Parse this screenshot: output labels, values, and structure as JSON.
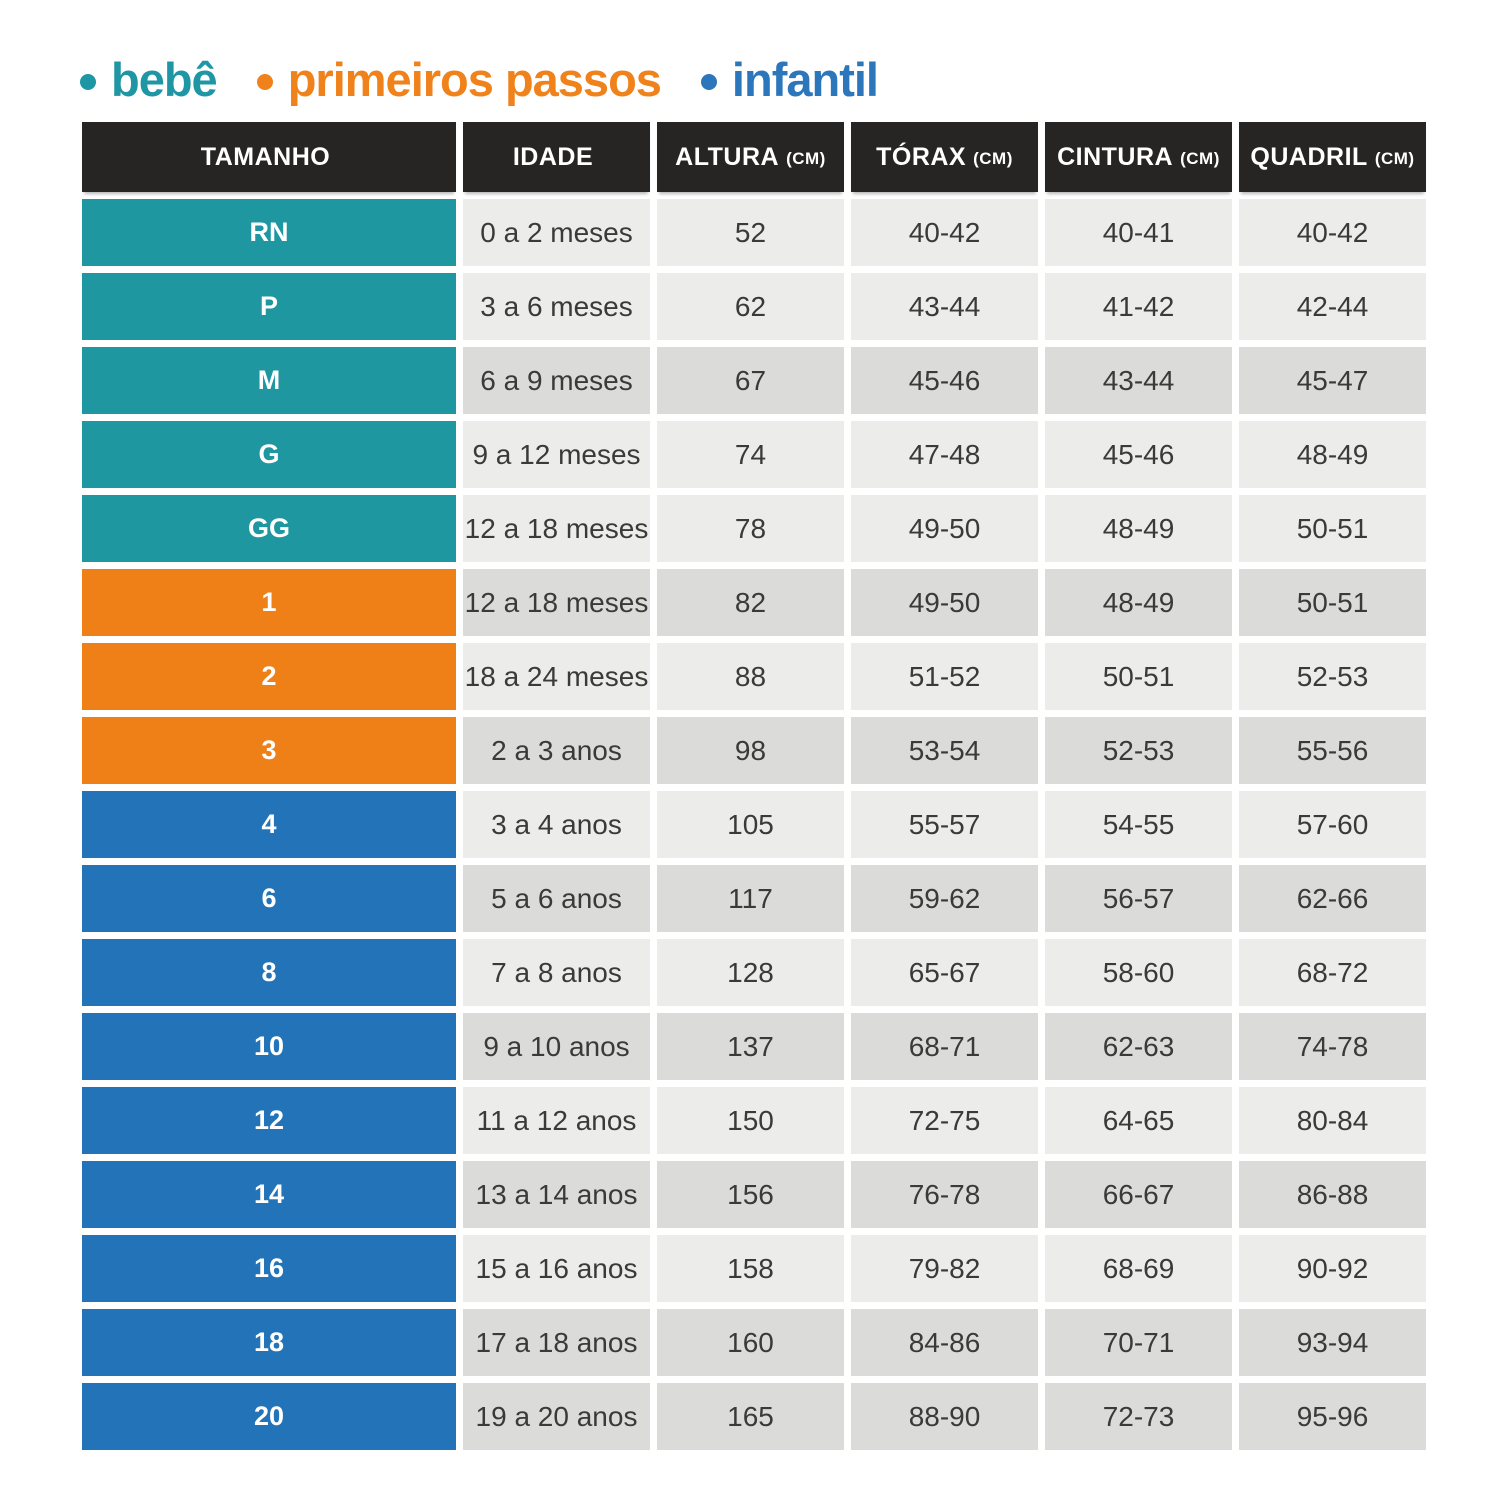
{
  "legend": {
    "items": [
      {
        "label": "bebê",
        "color": "#1E96A4"
      },
      {
        "label": "primeiros passos",
        "color": "#F0821B"
      },
      {
        "label": "infantil",
        "color": "#2C76BC"
      }
    ]
  },
  "table": {
    "headers": [
      {
        "label": "TAMANHO",
        "unit": ""
      },
      {
        "label": "IDADE",
        "unit": ""
      },
      {
        "label": "ALTURA",
        "unit": "(CM)"
      },
      {
        "label": "TÓRAX",
        "unit": "(CM)"
      },
      {
        "label": "CINTURA",
        "unit": "(CM)"
      },
      {
        "label": "QUADRIL",
        "unit": "(CM)"
      }
    ]
  },
  "chart_data": {
    "type": "table",
    "columns": [
      "TAMANHO",
      "IDADE",
      "ALTURA (CM)",
      "TÓRAX (CM)",
      "CINTURA (CM)",
      "QUADRIL (CM)"
    ],
    "groups": {
      "bebe": "bebê",
      "primeiros_passos": "primeiros passos",
      "infantil": "infantil"
    },
    "rows": [
      {
        "size": "RN",
        "group": "bebe",
        "age": "0 a 2 meses",
        "altura_cm": "52",
        "torax_cm": "40-42",
        "cintura_cm": "40-41",
        "quadril_cm": "40-42",
        "shaded": false
      },
      {
        "size": "P",
        "group": "bebe",
        "age": "3 a 6 meses",
        "altura_cm": "62",
        "torax_cm": "43-44",
        "cintura_cm": "41-42",
        "quadril_cm": "42-44",
        "shaded": false
      },
      {
        "size": "M",
        "group": "bebe",
        "age": "6 a 9 meses",
        "altura_cm": "67",
        "torax_cm": "45-46",
        "cintura_cm": "43-44",
        "quadril_cm": "45-47",
        "shaded": true
      },
      {
        "size": "G",
        "group": "bebe",
        "age": "9 a 12 meses",
        "altura_cm": "74",
        "torax_cm": "47-48",
        "cintura_cm": "45-46",
        "quadril_cm": "48-49",
        "shaded": false
      },
      {
        "size": "GG",
        "group": "bebe",
        "age": "12 a 18 meses",
        "altura_cm": "78",
        "torax_cm": "49-50",
        "cintura_cm": "48-49",
        "quadril_cm": "50-51",
        "shaded": false
      },
      {
        "size": "1",
        "group": "primeiros_passos",
        "age": "12 a 18 meses",
        "altura_cm": "82",
        "torax_cm": "49-50",
        "cintura_cm": "48-49",
        "quadril_cm": "50-51",
        "shaded": true
      },
      {
        "size": "2",
        "group": "primeiros_passos",
        "age": "18 a 24 meses",
        "altura_cm": "88",
        "torax_cm": "51-52",
        "cintura_cm": "50-51",
        "quadril_cm": "52-53",
        "shaded": false
      },
      {
        "size": "3",
        "group": "primeiros_passos",
        "age": "2 a 3 anos",
        "altura_cm": "98",
        "torax_cm": "53-54",
        "cintura_cm": "52-53",
        "quadril_cm": "55-56",
        "shaded": true
      },
      {
        "size": "4",
        "group": "infantil",
        "age": "3 a 4 anos",
        "altura_cm": "105",
        "torax_cm": "55-57",
        "cintura_cm": "54-55",
        "quadril_cm": "57-60",
        "shaded": false
      },
      {
        "size": "6",
        "group": "infantil",
        "age": "5 a 6 anos",
        "altura_cm": "117",
        "torax_cm": "59-62",
        "cintura_cm": "56-57",
        "quadril_cm": "62-66",
        "shaded": true
      },
      {
        "size": "8",
        "group": "infantil",
        "age": "7 a 8 anos",
        "altura_cm": "128",
        "torax_cm": "65-67",
        "cintura_cm": "58-60",
        "quadril_cm": "68-72",
        "shaded": false
      },
      {
        "size": "10",
        "group": "infantil",
        "age": "9 a 10 anos",
        "altura_cm": "137",
        "torax_cm": "68-71",
        "cintura_cm": "62-63",
        "quadril_cm": "74-78",
        "shaded": true
      },
      {
        "size": "12",
        "group": "infantil",
        "age": "11 a 12 anos",
        "altura_cm": "150",
        "torax_cm": "72-75",
        "cintura_cm": "64-65",
        "quadril_cm": "80-84",
        "shaded": false
      },
      {
        "size": "14",
        "group": "infantil",
        "age": "13 a 14 anos",
        "altura_cm": "156",
        "torax_cm": "76-78",
        "cintura_cm": "66-67",
        "quadril_cm": "86-88",
        "shaded": true
      },
      {
        "size": "16",
        "group": "infantil",
        "age": "15 a 16 anos",
        "altura_cm": "158",
        "torax_cm": "79-82",
        "cintura_cm": "68-69",
        "quadril_cm": "90-92",
        "shaded": false
      },
      {
        "size": "18",
        "group": "infantil",
        "age": "17 a 18 anos",
        "altura_cm": "160",
        "torax_cm": "84-86",
        "cintura_cm": "70-71",
        "quadril_cm": "93-94",
        "shaded": true
      },
      {
        "size": "20",
        "group": "infantil",
        "age": "19 a 20 anos",
        "altura_cm": "165",
        "torax_cm": "88-90",
        "cintura_cm": "72-73",
        "quadril_cm": "95-96",
        "shaded": true
      }
    ]
  },
  "colors": {
    "bebe": "#1F97A1",
    "primeiros_passos": "#EF7F17",
    "infantil": "#2273B7",
    "header_bg": "#262523",
    "header_text": "#FFFFFF",
    "row_light": "#ECECEB",
    "row_dark": "#DBDBDA",
    "cell_text": "#3A3A39",
    "size_text": "#FFFFFF"
  }
}
